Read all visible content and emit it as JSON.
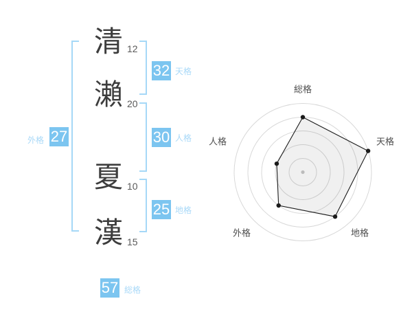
{
  "name_chars": {
    "surname": [
      {
        "char": "清",
        "strokes": "12"
      },
      {
        "char": "瀨",
        "strokes": "20"
      }
    ],
    "given": [
      {
        "char": "夏",
        "strokes": "10"
      },
      {
        "char": "漢",
        "strokes": "15"
      }
    ]
  },
  "kaku": {
    "tenkaku": {
      "label": "天格",
      "value": "32"
    },
    "jinkaku": {
      "label": "人格",
      "value": "30"
    },
    "chikaku": {
      "label": "地格",
      "value": "25"
    },
    "gaikaku": {
      "label": "外格",
      "value": "27"
    },
    "soukaku": {
      "label": "総格",
      "value": "57"
    }
  },
  "chart_data": {
    "type": "radar",
    "categories": [
      "総格",
      "天格",
      "地格",
      "外格",
      "人格"
    ],
    "values": [
      4,
      5,
      4,
      3,
      2
    ],
    "max": 5,
    "rings": 5,
    "start_angle_deg": 90,
    "direction": "clockwise",
    "grid_shape": "circle",
    "center_dot": true,
    "legend": "none",
    "title": ""
  },
  "colors": {
    "badge_blue": "#7cc5f0",
    "label_blue": "#a9d9f8",
    "bracket_blue": "#a5d8f7",
    "kanji_color": "#3d3d3d",
    "stroke_count_color": "#595959",
    "radar_line": "#1b1b1b",
    "radar_ring": "#d8d8d8",
    "radar_fill": "rgba(0,0,0,0.06)",
    "radar_label": "#4d4d4d",
    "radar_center_dot": "#c8c8c8"
  }
}
